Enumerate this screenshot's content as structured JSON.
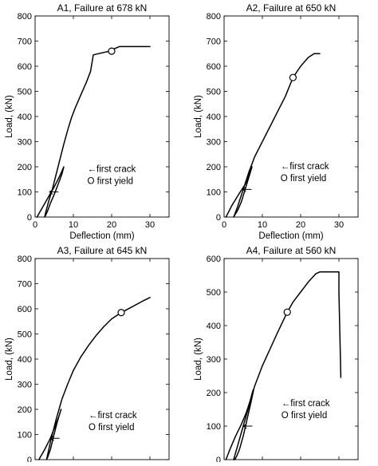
{
  "chart_data": [
    {
      "type": "line",
      "title": "A1, Failure at 678 kN",
      "xlabel": "Deflection (mm)",
      "ylabel": "Load, (kN)",
      "xlim": [
        0,
        35
      ],
      "ylim": [
        0,
        800
      ],
      "xticks": [
        0,
        10,
        20,
        30
      ],
      "yticks": [
        0,
        100,
        200,
        300,
        400,
        500,
        600,
        700,
        800
      ],
      "legend": [
        "←first crack",
        "O first yield"
      ],
      "first_yield": {
        "x": 20,
        "y": 660
      },
      "first_crack": {
        "x": 4.2,
        "y": 100
      },
      "series": [
        {
          "x": [
            0.5,
            2.0,
            3.5,
            5.0,
            6.5,
            7.5,
            7.0,
            6.0,
            5.0,
            4.0,
            3.3,
            2.8,
            2.5,
            2.8,
            3.5,
            4.5,
            5.5,
            6.5,
            7.5,
            8.5,
            9.5,
            10.5,
            11.5,
            12.5,
            13.5,
            14.5,
            15.2,
            16.5,
            18.0,
            19.5,
            20.0,
            22.0,
            25.0,
            30.0
          ],
          "y": [
            0,
            40,
            80,
            120,
            165,
            200,
            170,
            130,
            90,
            55,
            25,
            8,
            0,
            20,
            60,
            110,
            170,
            230,
            290,
            345,
            395,
            435,
            470,
            505,
            540,
            580,
            645,
            650,
            655,
            660,
            665,
            678,
            678,
            678
          ]
        }
      ]
    },
    {
      "type": "line",
      "title": "A2, Failure at 650 kN",
      "xlabel": "Deflection (mm)",
      "ylabel": "Load, (kN)",
      "xlim": [
        0,
        35
      ],
      "ylim": [
        0,
        800
      ],
      "xticks": [
        0,
        10,
        20,
        30
      ],
      "yticks": [
        0,
        100,
        200,
        300,
        400,
        500,
        600,
        700,
        800
      ],
      "legend": [
        "←first crack",
        "O first yield"
      ],
      "first_yield": {
        "x": 18,
        "y": 555
      },
      "first_crack": {
        "x": 5.3,
        "y": 110
      },
      "series": [
        {
          "x": [
            0.5,
            2.0,
            4.0,
            5.5,
            6.5,
            7.3,
            6.5,
            5.5,
            4.5,
            3.5,
            2.8,
            2.5,
            3.5,
            5.0,
            6.5,
            8.0,
            10.0,
            12.0,
            14.0,
            16.0,
            18.0,
            20.0,
            22.0,
            23.5,
            25.0
          ],
          "y": [
            0,
            45,
            95,
            130,
            165,
            200,
            160,
            110,
            60,
            25,
            8,
            0,
            40,
            110,
            180,
            240,
            300,
            360,
            420,
            480,
            555,
            600,
            635,
            650,
            650
          ]
        }
      ]
    },
    {
      "type": "line",
      "title": "A3, Failure at 645 kN",
      "xlabel": "Deflection (mm)",
      "ylabel": "Load, (kN)",
      "xlim": [
        0,
        35
      ],
      "ylim": [
        0,
        800
      ],
      "xticks": [
        0,
        10,
        20,
        30
      ],
      "yticks": [
        0,
        100,
        200,
        300,
        400,
        500,
        600,
        700,
        800
      ],
      "legend": [
        "←first crack",
        "O first yield"
      ],
      "first_yield": {
        "x": 22.5,
        "y": 585
      },
      "first_crack": {
        "x": 4.5,
        "y": 85
      },
      "series": [
        {
          "x": [
            1.0,
            2.5,
            4.0,
            5.3,
            6.3,
            6.8,
            5.8,
            4.8,
            4.0,
            3.3,
            3.0,
            4.0,
            5.5,
            7.0,
            8.5,
            10.0,
            12.0,
            14.0,
            16.0,
            18.0,
            20.0,
            22.5,
            25.0,
            28.0,
            30.0
          ],
          "y": [
            0,
            40,
            85,
            135,
            175,
            200,
            150,
            90,
            40,
            10,
            0,
            70,
            160,
            240,
            300,
            355,
            410,
            455,
            495,
            530,
            560,
            585,
            605,
            630,
            645
          ]
        }
      ]
    },
    {
      "type": "line",
      "title": "A4, Failure at 560 kN",
      "xlabel": "Deflection (mm)",
      "ylabel": "Load, (kN)",
      "xlim": [
        0,
        35
      ],
      "ylim": [
        0,
        600
      ],
      "xticks": [
        0,
        10,
        20,
        30
      ],
      "yticks": [
        0,
        100,
        200,
        300,
        400,
        500,
        600
      ],
      "legend": [
        "←first crack",
        "O first yield"
      ],
      "first_yield": {
        "x": 16.5,
        "y": 440
      },
      "first_crack": {
        "x": 5.5,
        "y": 100
      },
      "series": [
        {
          "x": [
            0.5,
            1.5,
            3.0,
            4.5,
            5.8,
            6.8,
            7.5,
            7.8,
            7.0,
            6.0,
            5.0,
            4.0,
            3.3,
            2.8,
            2.5,
            3.5,
            5.0,
            6.5,
            8.0,
            10.0,
            12.0,
            14.0,
            16.5,
            18.0,
            20.0,
            22.0,
            24.0,
            25.0,
            28.0,
            30.0,
            30.0,
            30.5
          ],
          "y": [
            0,
            30,
            70,
            105,
            140,
            175,
            205,
            212,
            170,
            120,
            70,
            30,
            10,
            0,
            0,
            40,
            100,
            160,
            220,
            280,
            330,
            380,
            440,
            470,
            500,
            530,
            555,
            560,
            560,
            560,
            500,
            245
          ]
        }
      ]
    }
  ]
}
